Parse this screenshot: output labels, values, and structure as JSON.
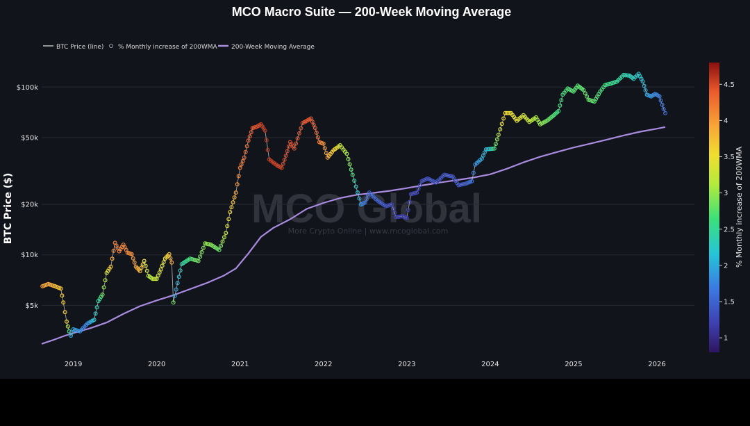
{
  "chart_data": {
    "type": "line",
    "title": "MCO Macro Suite — 200-Week Moving Average",
    "ylabel": "BTC Price ($)",
    "xlabel": "",
    "yscale": "log",
    "ylim": [
      2600,
      140000
    ],
    "xlim": [
      2018.62,
      2026.45
    ],
    "x_tick_labels": [
      "2019",
      "2020",
      "2021",
      "2022",
      "2023",
      "2024",
      "2025",
      "2026"
    ],
    "x_ticks": [
      2019,
      2020,
      2021,
      2022,
      2023,
      2024,
      2025,
      2026
    ],
    "y_ticks": [
      5000,
      10000,
      20000,
      50000,
      100000
    ],
    "y_tick_labels": [
      "$5k",
      "$10k",
      "$20k",
      "$50k",
      "$100k"
    ],
    "legend": {
      "placement": "top-left",
      "entries": [
        "BTC Price (line)",
        "% Monthly increase of 200WMA",
        "200-Week Moving Average"
      ]
    },
    "colorbar": {
      "label": "% Monthly increase of 200WMA",
      "range": [
        0.8,
        4.8
      ],
      "ticks": [
        1,
        1.5,
        2,
        2.5,
        3,
        3.5,
        4,
        4.5
      ],
      "tick_labels": [
        "1",
        "1.5",
        "2",
        "2.5",
        "3",
        "3.5",
        "4",
        "4.5"
      ]
    },
    "series": [
      {
        "name": "BTC Price (line)",
        "color": "#bfbfbf",
        "points": [
          [
            2018.63,
            6500
          ],
          [
            2018.7,
            6700
          ],
          [
            2018.78,
            6500
          ],
          [
            2018.85,
            6300
          ],
          [
            2018.88,
            5200
          ],
          [
            2018.92,
            4000
          ],
          [
            2018.95,
            3500
          ],
          [
            2018.97,
            3300
          ],
          [
            2019.0,
            3600
          ],
          [
            2019.08,
            3500
          ],
          [
            2019.17,
            3900
          ],
          [
            2019.25,
            4100
          ],
          [
            2019.3,
            5300
          ],
          [
            2019.35,
            5800
          ],
          [
            2019.4,
            7800
          ],
          [
            2019.45,
            8500
          ],
          [
            2019.5,
            11800
          ],
          [
            2019.55,
            10500
          ],
          [
            2019.6,
            11500
          ],
          [
            2019.65,
            10300
          ],
          [
            2019.7,
            10100
          ],
          [
            2019.75,
            8500
          ],
          [
            2019.8,
            8000
          ],
          [
            2019.85,
            9200
          ],
          [
            2019.9,
            7500
          ],
          [
            2019.95,
            7200
          ],
          [
            2020.0,
            7200
          ],
          [
            2020.05,
            8200
          ],
          [
            2020.1,
            9500
          ],
          [
            2020.15,
            10100
          ],
          [
            2020.18,
            9000
          ],
          [
            2020.2,
            5200
          ],
          [
            2020.25,
            6800
          ],
          [
            2020.3,
            8800
          ],
          [
            2020.4,
            9500
          ],
          [
            2020.5,
            9200
          ],
          [
            2020.58,
            11700
          ],
          [
            2020.65,
            11500
          ],
          [
            2020.75,
            10700
          ],
          [
            2020.83,
            13500
          ],
          [
            2020.88,
            18000
          ],
          [
            2020.95,
            23500
          ],
          [
            2021.0,
            33000
          ],
          [
            2021.05,
            38000
          ],
          [
            2021.1,
            48000
          ],
          [
            2021.15,
            57000
          ],
          [
            2021.2,
            58000
          ],
          [
            2021.25,
            60000
          ],
          [
            2021.3,
            55000
          ],
          [
            2021.35,
            37000
          ],
          [
            2021.45,
            34000
          ],
          [
            2021.5,
            33000
          ],
          [
            2021.55,
            39000
          ],
          [
            2021.6,
            47000
          ],
          [
            2021.65,
            43000
          ],
          [
            2021.75,
            61000
          ],
          [
            2021.85,
            65000
          ],
          [
            2021.9,
            57000
          ],
          [
            2021.95,
            47000
          ],
          [
            2022.0,
            46000
          ],
          [
            2022.05,
            38000
          ],
          [
            2022.12,
            42000
          ],
          [
            2022.2,
            45000
          ],
          [
            2022.28,
            40000
          ],
          [
            2022.35,
            30000
          ],
          [
            2022.45,
            20000
          ],
          [
            2022.5,
            20500
          ],
          [
            2022.55,
            23500
          ],
          [
            2022.65,
            21000
          ],
          [
            2022.75,
            19500
          ],
          [
            2022.82,
            20000
          ],
          [
            2022.87,
            16800
          ],
          [
            2022.95,
            17000
          ],
          [
            2023.0,
            16600
          ],
          [
            2023.05,
            23000
          ],
          [
            2023.12,
            23500
          ],
          [
            2023.18,
            27500
          ],
          [
            2023.25,
            28500
          ],
          [
            2023.35,
            27000
          ],
          [
            2023.45,
            30000
          ],
          [
            2023.55,
            29300
          ],
          [
            2023.62,
            26000
          ],
          [
            2023.7,
            26500
          ],
          [
            2023.78,
            27500
          ],
          [
            2023.82,
            34500
          ],
          [
            2023.9,
            37500
          ],
          [
            2023.95,
            42500
          ],
          [
            2024.05,
            43000
          ],
          [
            2024.1,
            52000
          ],
          [
            2024.18,
            70000
          ],
          [
            2024.25,
            70000
          ],
          [
            2024.32,
            63000
          ],
          [
            2024.4,
            68000
          ],
          [
            2024.47,
            62000
          ],
          [
            2024.55,
            66000
          ],
          [
            2024.6,
            60000
          ],
          [
            2024.68,
            63000
          ],
          [
            2024.75,
            67000
          ],
          [
            2024.82,
            72000
          ],
          [
            2024.87,
            90000
          ],
          [
            2024.93,
            98000
          ],
          [
            2025.0,
            94000
          ],
          [
            2025.05,
            102000
          ],
          [
            2025.12,
            96000
          ],
          [
            2025.18,
            84000
          ],
          [
            2025.25,
            82000
          ],
          [
            2025.32,
            94000
          ],
          [
            2025.38,
            103000
          ],
          [
            2025.45,
            105000
          ],
          [
            2025.52,
            108000
          ],
          [
            2025.6,
            118000
          ],
          [
            2025.67,
            117000
          ],
          [
            2025.72,
            112000
          ],
          [
            2025.78,
            120000
          ],
          [
            2025.83,
            108000
          ],
          [
            2025.88,
            90000
          ],
          [
            2025.93,
            88000
          ],
          [
            2025.98,
            91000
          ],
          [
            2026.03,
            88000
          ],
          [
            2026.08,
            74000
          ],
          [
            2026.1,
            70000
          ]
        ]
      },
      {
        "name": "200-Week Moving Average",
        "color": "#a98be0",
        "points": [
          [
            2018.62,
            2950
          ],
          [
            2018.75,
            3100
          ],
          [
            2018.9,
            3300
          ],
          [
            2019.0,
            3420
          ],
          [
            2019.2,
            3650
          ],
          [
            2019.4,
            3950
          ],
          [
            2019.6,
            4450
          ],
          [
            2019.8,
            4950
          ],
          [
            2020.0,
            5350
          ],
          [
            2020.2,
            5750
          ],
          [
            2020.4,
            6250
          ],
          [
            2020.6,
            6800
          ],
          [
            2020.8,
            7500
          ],
          [
            2020.95,
            8300
          ],
          [
            2021.1,
            10200
          ],
          [
            2021.25,
            12800
          ],
          [
            2021.4,
            14500
          ],
          [
            2021.6,
            16300
          ],
          [
            2021.8,
            18800
          ],
          [
            2022.0,
            20400
          ],
          [
            2022.2,
            21800
          ],
          [
            2022.4,
            22800
          ],
          [
            2022.6,
            23400
          ],
          [
            2022.8,
            24100
          ],
          [
            2023.0,
            25000
          ],
          [
            2023.2,
            26000
          ],
          [
            2023.4,
            27000
          ],
          [
            2023.6,
            27900
          ],
          [
            2023.8,
            28900
          ],
          [
            2024.0,
            30200
          ],
          [
            2024.2,
            32600
          ],
          [
            2024.4,
            35600
          ],
          [
            2024.6,
            38400
          ],
          [
            2024.8,
            41000
          ],
          [
            2025.0,
            43600
          ],
          [
            2025.2,
            46000
          ],
          [
            2025.4,
            48600
          ],
          [
            2025.6,
            51500
          ],
          [
            2025.8,
            54200
          ],
          [
            2026.0,
            56500
          ],
          [
            2026.1,
            57800
          ]
        ]
      }
    ],
    "color_values": {
      "name": "% Monthly increase of 200WMA",
      "anchors": [
        [
          2018.62,
          4.0
        ],
        [
          2018.92,
          3.6
        ],
        [
          2018.97,
          2.0
        ],
        [
          2019.15,
          1.7
        ],
        [
          2019.3,
          2.4
        ],
        [
          2019.4,
          3.3
        ],
        [
          2019.5,
          4.2
        ],
        [
          2019.7,
          4.1
        ],
        [
          2019.8,
          3.8
        ],
        [
          2019.92,
          3.1
        ],
        [
          2020.1,
          3.5
        ],
        [
          2020.18,
          3.9
        ],
        [
          2020.22,
          1.8
        ],
        [
          2020.3,
          2.4
        ],
        [
          2020.45,
          2.8
        ],
        [
          2020.6,
          3.0
        ],
        [
          2020.75,
          2.8
        ],
        [
          2020.85,
          3.4
        ],
        [
          2021.0,
          4.2
        ],
        [
          2021.3,
          4.6
        ],
        [
          2021.9,
          4.4
        ],
        [
          2022.05,
          3.9
        ],
        [
          2022.2,
          3.3
        ],
        [
          2022.32,
          2.9
        ],
        [
          2022.4,
          2.2
        ],
        [
          2022.5,
          1.6
        ],
        [
          2022.9,
          1.2
        ],
        [
          2023.3,
          1.35
        ],
        [
          2023.7,
          1.4
        ],
        [
          2023.82,
          1.8
        ],
        [
          2024.0,
          2.2
        ],
        [
          2024.15,
          3.6
        ],
        [
          2024.35,
          3.4
        ],
        [
          2024.6,
          3.0
        ],
        [
          2024.82,
          2.6
        ],
        [
          2024.93,
          2.7
        ],
        [
          2025.2,
          2.8
        ],
        [
          2025.5,
          2.5
        ],
        [
          2025.8,
          2.2
        ],
        [
          2025.9,
          1.9
        ],
        [
          2026.1,
          1.6
        ]
      ]
    },
    "watermark": {
      "main": "MCO Global",
      "sub": "More Crypto Online  |  www.mcoglobal.com"
    }
  }
}
